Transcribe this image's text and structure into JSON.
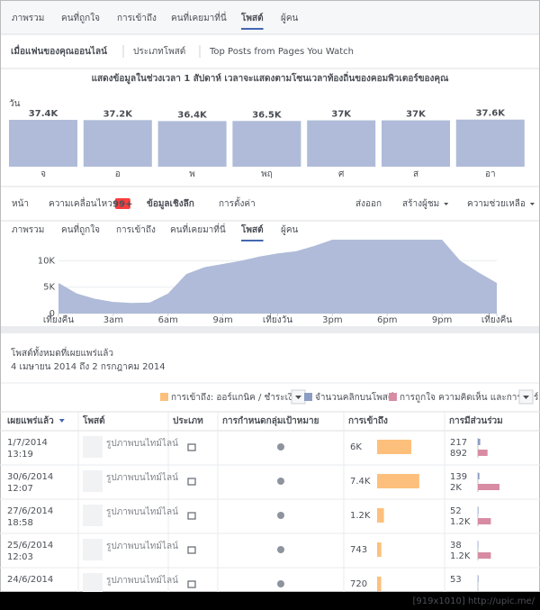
{
  "top_tabs": {
    "items": [
      "ภาพรวม",
      "คนที่ถูกใจ",
      "การเข้าถึง",
      "คนที่เคยมาที่นี่",
      "โพสต์",
      "ผู้คน"
    ],
    "active": 4
  },
  "sub_tabs": {
    "items": [
      "เมื่อแฟนของคุณออนไลน์",
      "ประเภทโพสต์",
      "Top Posts from Pages You Watch"
    ],
    "active": 0
  },
  "notice": "แสดงข้อมูลในช่วงเวลา 1 สัปดาห์ เวลาจะแสดงตามโซนเวลาท้องถิ่นของคอมพิวเตอร์ของคุณ",
  "days_label": "วัน",
  "nav": {
    "left": [
      "หน้า",
      "ความเคลื่อนไหว",
      "ข้อมูลเชิงลึก",
      "การตั้งค่า"
    ],
    "badge": "99+",
    "active": 2,
    "right": [
      "ส่งออก",
      "สร้างผู้ชม",
      "ความช่วยเหลือ"
    ]
  },
  "second_tabs": {
    "items": [
      "ภาพรวม",
      "คนที่ถูกใจ",
      "การเข้าถึง",
      "คนที่เคยมาที่นี่",
      "โพสต์",
      "ผู้คน"
    ],
    "active": 4
  },
  "chart_data": [
    {
      "type": "bar",
      "categories": [
        "จ",
        "อ",
        "พ",
        "พฤ",
        "ศ",
        "ส",
        "อา"
      ],
      "values": [
        37400,
        37200,
        36400,
        36500,
        37000,
        37000,
        37600
      ],
      "value_labels": [
        "37.4K",
        "37.2K",
        "36.4K",
        "36.5K",
        "37K",
        "37K",
        "37.6K"
      ],
      "color": "#afbbd8",
      "ylim": [
        0,
        40000
      ]
    },
    {
      "type": "area",
      "color": "#afbbd8",
      "x": [
        0,
        1,
        2,
        3,
        4,
        5,
        6,
        7,
        8,
        9,
        10,
        11,
        12,
        13,
        14,
        15,
        16,
        17,
        18,
        19,
        20,
        21,
        22,
        23,
        24
      ],
      "values": [
        5800,
        3800,
        2800,
        2200,
        2000,
        2100,
        3800,
        7500,
        8800,
        9400,
        10000,
        10800,
        11400,
        11800,
        12800,
        14000,
        14500,
        14500,
        14500,
        14500,
        14500,
        14000,
        10000,
        7800,
        5800
      ],
      "xlim": [
        0,
        24
      ],
      "xticks": [
        {
          "value": 0,
          "label": "เที่ยงคืน"
        },
        {
          "value": 3,
          "label": "3am"
        },
        {
          "value": 6,
          "label": "6am"
        },
        {
          "value": 9,
          "label": "9am"
        },
        {
          "value": 12,
          "label": "เที่ยงวัน"
        },
        {
          "value": 15,
          "label": "3pm"
        },
        {
          "value": 18,
          "label": "6pm"
        },
        {
          "value": 21,
          "label": "9pm"
        },
        {
          "value": 24,
          "label": "เที่ยงคืน"
        }
      ],
      "ylim": [
        0,
        14000
      ],
      "yticks": [
        0,
        {
          "value": 5000,
          "label": "5K"
        },
        {
          "value": 10000,
          "label": "10K"
        }
      ],
      "grid": true
    }
  ],
  "posts_section": {
    "title": "โพสต์ทั้งหมดที่เผยแพร่แล้ว",
    "date_range": "4 เมษายน 2014 ถึง 2 กรกฎาคม 2014"
  },
  "legend": [
    {
      "name": "การเข้าถึง: ออร์แกนิค / ชำระเงิน",
      "color": "#fdc07c"
    },
    {
      "name": "จำนวนคลิกบนโพสต์",
      "color": "#8b9dc3"
    },
    {
      "name": "การถูกใจ ความคิดเห็น และการแชร์",
      "color": "#d88ca3"
    }
  ],
  "table": {
    "headers": [
      "เผยแพร่แล้ว",
      "โพสต์",
      "ประเภท",
      "การกำหนดกลุ่มเป้าหมาย",
      "การเข้าถึง",
      "การมีส่วนร่วม"
    ],
    "rows": [
      {
        "date": "1/7/2014",
        "time": "13:19",
        "post": "รูปภาพบนไทม์ไลน์",
        "reach": {
          "value": 6000,
          "label": "6K"
        },
        "clicks": 217,
        "reactions": {
          "value": 892,
          "label": "892"
        }
      },
      {
        "date": "30/6/2014",
        "time": "12:07",
        "post": "รูปภาพบนไทม์ไลน์",
        "reach": {
          "value": 7400,
          "label": "7.4K"
        },
        "clicks": 139,
        "reactions": {
          "value": 2000,
          "label": "2K"
        }
      },
      {
        "date": "27/6/2014",
        "time": "18:58",
        "post": "รูปภาพบนไทม์ไลน์",
        "reach": {
          "value": 1200,
          "label": "1.2K"
        },
        "clicks": 52,
        "reactions": {
          "value": 1200,
          "label": "1.2K"
        }
      },
      {
        "date": "25/6/2014",
        "time": "12:03",
        "post": "รูปภาพบนไทม์ไลน์",
        "reach": {
          "value": 743,
          "label": "743"
        },
        "clicks": 38,
        "reactions": {
          "value": 1200,
          "label": "1.2K"
        }
      },
      {
        "date": "24/6/2014",
        "post": "รูปภาพบนไทม์ไลน์",
        "reach": {
          "value": 720,
          "label": "720"
        },
        "clicks": 53
      }
    ]
  },
  "footer": "[919x1010] http://upic.me/"
}
